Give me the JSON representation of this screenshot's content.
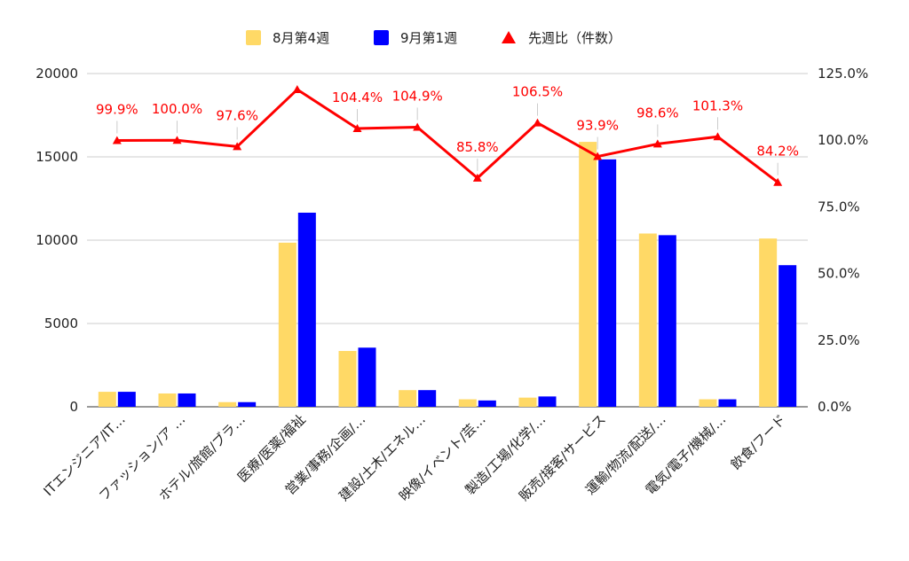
{
  "chart_data": {
    "type": "bar",
    "categories": [
      "ITエンジニア/IT…",
      "ファッション/ア …",
      "ホテル/旅館/ブラ…",
      "医療/医薬/福祉",
      "営業/事務/企画/…",
      "建設/土木/エネル…",
      "映像/イベント/芸…",
      "製造/工場/化学/…",
      "販売/接客/サービス",
      "運輸/物流/配送/…",
      "電気/電子/機械/…",
      "飲食/フード"
    ],
    "series": [
      {
        "name": "8月第4週",
        "color": "#FFD966",
        "axis": "left",
        "values": [
          900,
          800,
          280,
          9850,
          3350,
          1000,
          450,
          550,
          15900,
          10400,
          450,
          10100
        ]
      },
      {
        "name": "9月第1週",
        "color": "#0000FF",
        "axis": "left",
        "values": [
          900,
          800,
          280,
          11650,
          3550,
          1000,
          380,
          620,
          14850,
          10300,
          450,
          8500
        ]
      },
      {
        "name": "先週比（件数）",
        "type": "line",
        "color": "#FF0000",
        "axis": "right",
        "values": [
          99.9,
          100.0,
          97.6,
          119.0,
          104.4,
          104.9,
          85.8,
          106.5,
          93.9,
          98.6,
          101.3,
          84.2
        ],
        "labels": [
          "99.9%",
          "100.0%",
          "97.6%",
          "",
          "104.4%",
          "104.9%",
          "85.8%",
          "106.5%",
          "93.9%",
          "98.6%",
          "101.3%",
          "84.2%"
        ]
      }
    ],
    "y_left": {
      "ylim": [
        0,
        20000
      ],
      "ticks": [
        "0",
        "5000",
        "10000",
        "15000",
        "20000"
      ]
    },
    "y_right": {
      "ylim": [
        0,
        125
      ],
      "ticks": [
        "0.0%",
        "25.0%",
        "50.0%",
        "75.0%",
        "100.0%",
        "125.0%"
      ]
    },
    "legend_position": "top-center",
    "grid": true
  }
}
